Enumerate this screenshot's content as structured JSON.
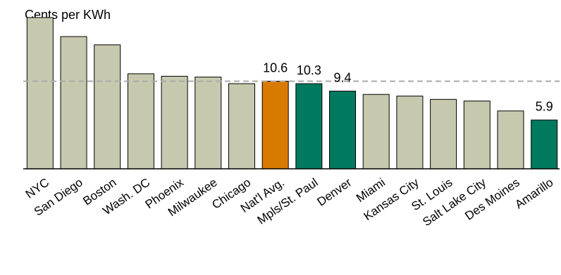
{
  "chart_data": {
    "type": "bar",
    "title": "",
    "xlabel": "",
    "ylabel": "Cents per KWh",
    "ylim": [
      0,
      20
    ],
    "grid": false,
    "categories": [
      "NYC",
      "San Diego",
      "Boston",
      "Wash. DC",
      "Phoenix",
      "Milwaukee",
      "Chicago",
      "Nat'l Avg.",
      "Mpls/St. Paul",
      "Denver",
      "Miami",
      "Kansas City",
      "St. Louis",
      "Salt Lake City",
      "Des Moines",
      "Amarillo"
    ],
    "values": [
      18.3,
      16.0,
      15.0,
      11.5,
      11.2,
      11.1,
      10.3,
      10.6,
      10.3,
      9.4,
      9.0,
      8.8,
      8.4,
      8.2,
      7.0,
      5.9
    ],
    "data_labels": [
      {
        "index": 7,
        "text": "10.6"
      },
      {
        "index": 8,
        "text": "10.3"
      },
      {
        "index": 9,
        "text": "9.4"
      },
      {
        "index": 15,
        "text": "5.9"
      }
    ],
    "reference_line": {
      "value": 10.6,
      "style": "dashed"
    },
    "colors": {
      "default": "#c6c9ae",
      "national_average": "#d97a00",
      "highlight": "#007a5e",
      "reference_line": "#aaaaaa",
      "axis": "#000000"
    },
    "bar_color_keys": [
      "default",
      "default",
      "default",
      "default",
      "default",
      "default",
      "default",
      "national_average",
      "highlight",
      "highlight",
      "default",
      "default",
      "default",
      "default",
      "default",
      "highlight"
    ]
  }
}
